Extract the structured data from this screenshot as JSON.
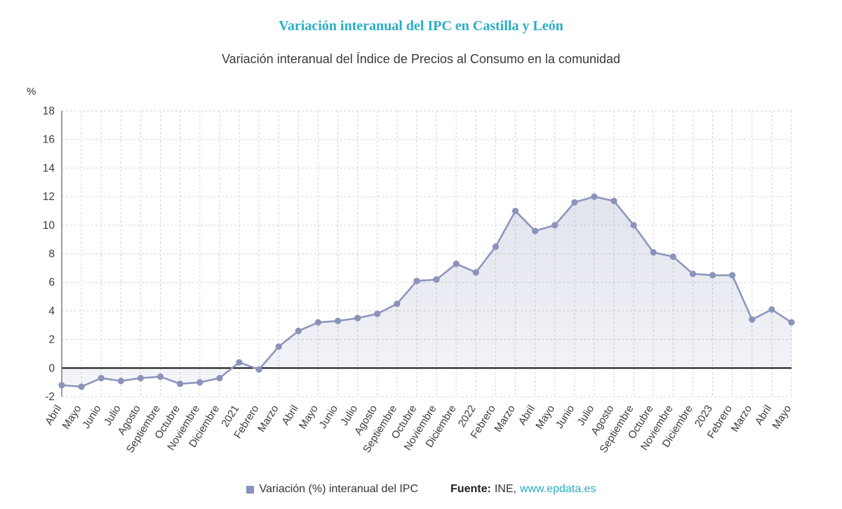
{
  "page": {
    "title": "Variación interanual del IPC en Castilla y León",
    "subtitle": "Variación interanual del Índice de Precios al Consumo en la comunidad",
    "y_unit_label": "%"
  },
  "legend": {
    "series_label": "Variación (%) interanual del IPC"
  },
  "footer": {
    "source_label": "Fuente:",
    "source_name": "INE,",
    "source_link": "www.epdata.es"
  },
  "colors": {
    "title": "#29aec6",
    "link": "#29aec6",
    "line": "#8e96bd",
    "marker": "#8a93ba",
    "area": "#8e96bd",
    "grid": "#d2d2d2",
    "axis": "#666666",
    "zero_line": "#111111",
    "tick_text": "#3c3c3c"
  },
  "chart_data": {
    "type": "line",
    "title": "Variación interanual del IPC en Castilla y León",
    "xlabel": "",
    "ylabel": "%",
    "ylim": [
      -2,
      18
    ],
    "yticks": [
      -2,
      0,
      2,
      4,
      6,
      8,
      10,
      12,
      14,
      16,
      18
    ],
    "grid": true,
    "legend_position": "bottom",
    "x": [
      "Abril",
      "Mayo",
      "Junio",
      "Julio",
      "Agosto",
      "Septiembre",
      "Octubre",
      "Noviembre",
      "Diciembre",
      "2021",
      "Febrero",
      "Marzo",
      "Abril",
      "Mayo",
      "Junio",
      "Julio",
      "Agosto",
      "Septiembre",
      "Octubre",
      "Noviembre",
      "Diciembre",
      "2022",
      "Febrero",
      "Marzo",
      "Abril",
      "Mayo",
      "Junio",
      "Julio",
      "Agosto",
      "Septiembre",
      "Octubre",
      "Noviembre",
      "Diciembre",
      "2023",
      "Febrero",
      "Marzo",
      "Abril",
      "Mayo"
    ],
    "series": [
      {
        "name": "Variación (%) interanual del IPC",
        "values": [
          -1.2,
          -1.3,
          -0.7,
          -0.9,
          -0.7,
          -0.6,
          -1.1,
          -1.0,
          -0.7,
          0.4,
          -0.1,
          1.5,
          2.6,
          3.2,
          3.3,
          3.5,
          3.8,
          4.5,
          6.1,
          6.2,
          7.3,
          6.7,
          8.5,
          11.0,
          9.6,
          10.0,
          11.6,
          12.0,
          11.7,
          10.0,
          8.1,
          7.8,
          6.6,
          6.5,
          6.5,
          3.4,
          4.1,
          3.2
        ]
      }
    ]
  }
}
